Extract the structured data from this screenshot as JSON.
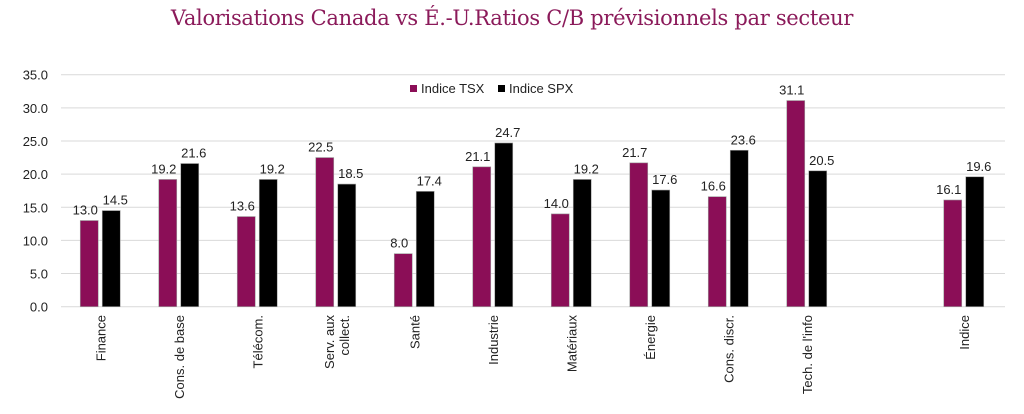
{
  "chart_data": {
    "type": "bar",
    "title": "Valorisations Canada vs É.-U.Ratios C/B prévisionnels par secteur",
    "xlabel": "",
    "ylabel": "",
    "ylim": [
      0,
      35
    ],
    "yticks": [
      "0.0",
      "5.0",
      "10.0",
      "15.0",
      "20.0",
      "25.0",
      "30.0",
      "35.0"
    ],
    "grid": true,
    "legend_position": "top-center",
    "categories": [
      "Finance",
      "Cons. de base",
      "Télécom.",
      "Serv. aux collect.",
      "Santé",
      "Industrie",
      "Matériaux",
      "Énergie",
      "Cons. discr.",
      "Tech. de l'info",
      "",
      "Indice"
    ],
    "series": [
      {
        "name": "Indice TSX",
        "color": "#8b0e57",
        "values": [
          13.0,
          19.2,
          13.6,
          22.5,
          8.0,
          21.1,
          14.0,
          21.7,
          16.6,
          31.1,
          null,
          16.1
        ]
      },
      {
        "name": "Indice SPX",
        "color": "#000000",
        "values": [
          14.5,
          21.6,
          19.2,
          18.5,
          17.4,
          24.7,
          19.2,
          17.6,
          23.6,
          20.5,
          null,
          19.6
        ]
      }
    ]
  }
}
